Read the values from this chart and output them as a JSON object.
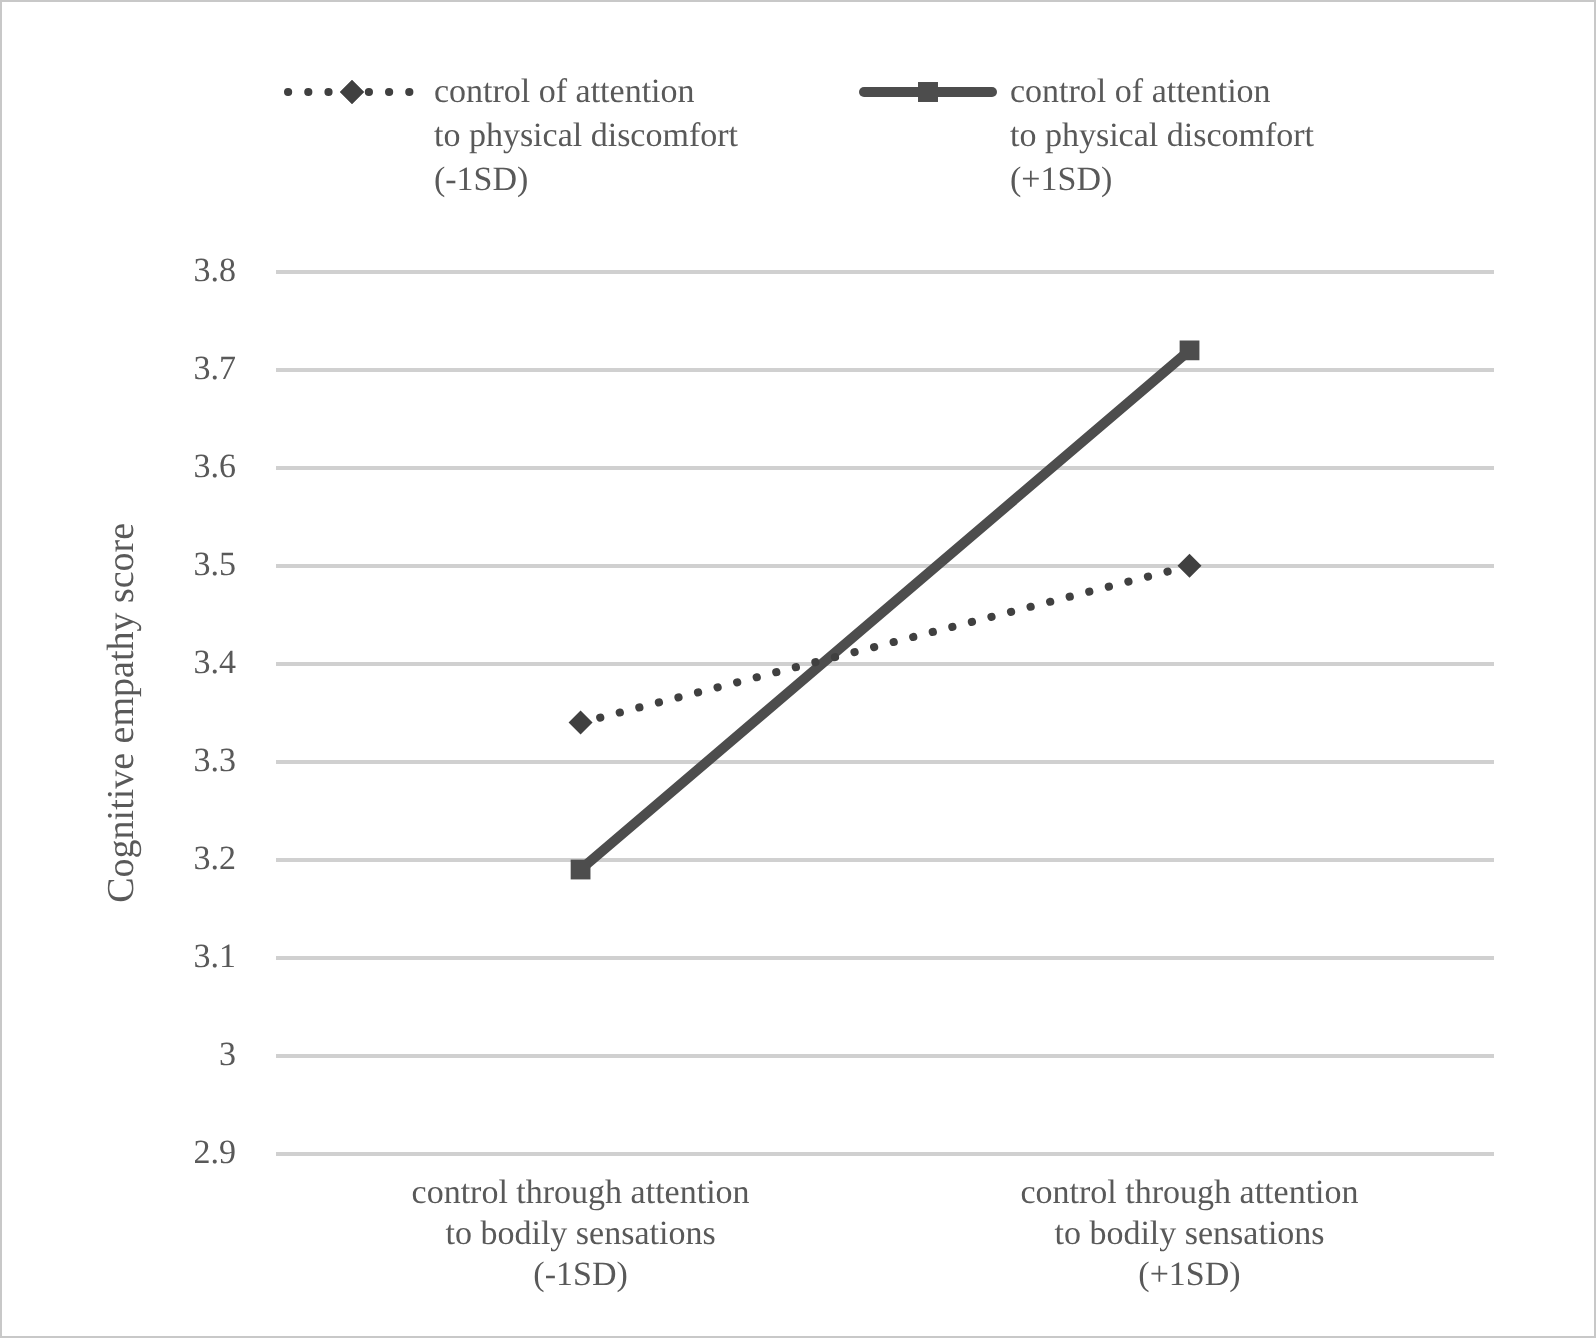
{
  "chart_data": {
    "type": "line",
    "ylabel": "Cognitive empathy score",
    "categories": [
      "control through attention\nto bodily sensations\n(-1SD)",
      "control through attention\nto bodily sensations\n(+1SD)"
    ],
    "series": [
      {
        "name": "control of attention\nto physical discomfort\n(-1SD)",
        "color": "#404040",
        "values": [
          3.34,
          3.5
        ],
        "line_style": "dotted",
        "marker": "diamond"
      },
      {
        "name": "control of attention\nto physical discomfort\n(+1SD)",
        "color": "#4d4d4d",
        "values": [
          3.19,
          3.72
        ],
        "line_style": "solid",
        "marker": "square"
      }
    ],
    "ylim": [
      2.9,
      3.8
    ],
    "yticks": [
      2.9,
      3,
      3.1,
      3.2,
      3.3,
      3.4,
      3.5,
      3.6,
      3.7,
      3.8
    ],
    "grid": "y",
    "legend": "top"
  }
}
